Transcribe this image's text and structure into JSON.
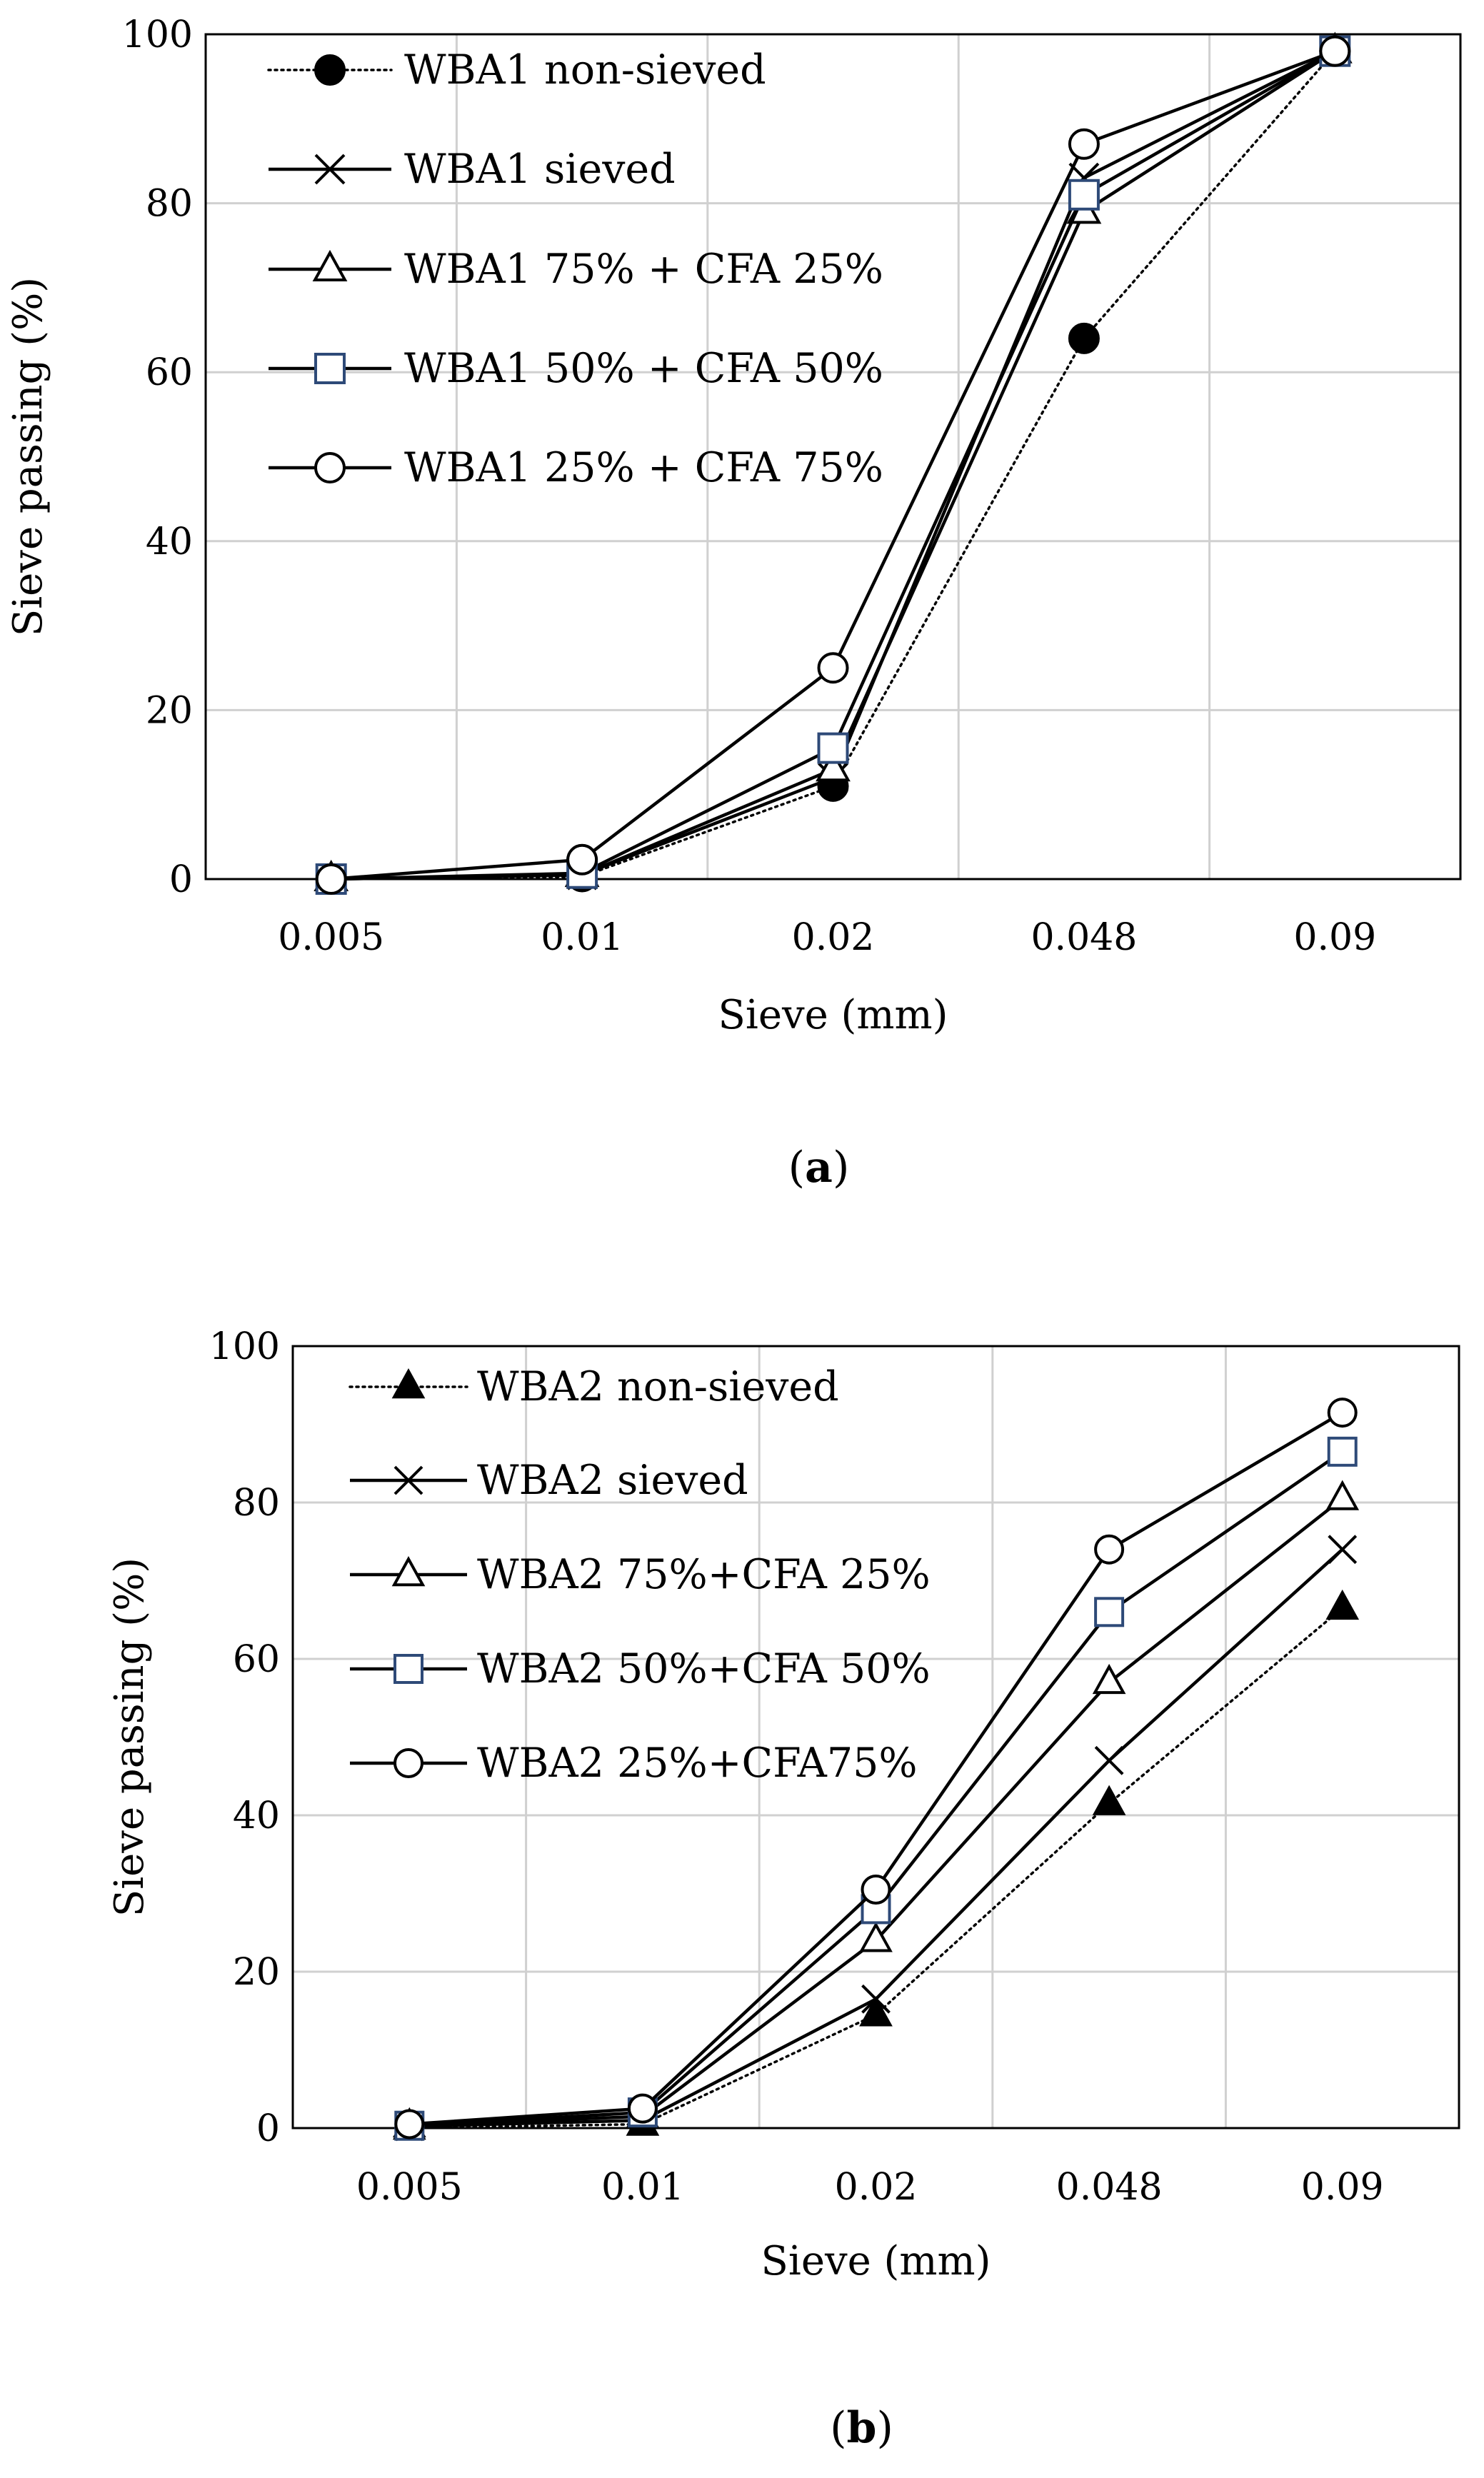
{
  "chart_data": [
    {
      "type": "line",
      "panel_label": "a",
      "title": "",
      "xlabel": "Sieve (mm)",
      "ylabel": "Sieve passing (%)",
      "categories": [
        "0.005",
        "0.01",
        "0.02",
        "0.048",
        "0.09"
      ],
      "ylim": [
        0,
        100
      ],
      "yticks": [
        "0",
        "20",
        "40",
        "60",
        "80",
        "100"
      ],
      "grid": true,
      "legend_position": "top-left",
      "series": [
        {
          "name": "WBA1 non-sieved",
          "marker": "filled-circle",
          "line": "dotted",
          "values": [
            0,
            0.3,
            11,
            64,
            98
          ]
        },
        {
          "name": "WBA1 sieved",
          "marker": "x",
          "line": "solid",
          "values": [
            0,
            0.5,
            12,
            83,
            98
          ]
        },
        {
          "name": "WBA1 75% + CFA 25%",
          "marker": "open-triangle",
          "line": "solid",
          "values": [
            0,
            0.5,
            13,
            79,
            98
          ]
        },
        {
          "name": "WBA1 50% + CFA 50%",
          "marker": "open-square",
          "line": "solid",
          "values": [
            0,
            0.7,
            15.5,
            81,
            98
          ]
        },
        {
          "name": "WBA1 25% + CFA 75%",
          "marker": "open-circle",
          "line": "solid",
          "values": [
            0,
            2.3,
            25,
            87,
            98
          ]
        }
      ]
    },
    {
      "type": "line",
      "panel_label": "b",
      "title": "",
      "xlabel": "Sieve (mm)",
      "ylabel": "Sieve passing (%)",
      "categories": [
        "0.005",
        "0.01",
        "0.02",
        "0.048",
        "0.09"
      ],
      "ylim": [
        0,
        100
      ],
      "yticks": [
        "0",
        "20",
        "40",
        "60",
        "80",
        "100"
      ],
      "grid": true,
      "legend_position": "top-left",
      "series": [
        {
          "name": "WBA2 non-sieved",
          "marker": "filled-triangle",
          "line": "dotted",
          "values": [
            0,
            0.5,
            14.5,
            41.5,
            66.5
          ]
        },
        {
          "name": "WBA2 sieved",
          "marker": "x",
          "line": "solid",
          "values": [
            0.2,
            1,
            16.5,
            47,
            74
          ]
        },
        {
          "name": "WBA2 75%+CFA 25%",
          "marker": "open-triangle",
          "line": "solid",
          "values": [
            0.3,
            1.5,
            24,
            57,
            80.5
          ]
        },
        {
          "name": "WBA2 50%+CFA 50%",
          "marker": "open-square",
          "line": "solid",
          "values": [
            0.3,
            2,
            28,
            66,
            86.5
          ]
        },
        {
          "name": "WBA2 25%+CFA75%",
          "marker": "open-circle",
          "line": "solid",
          "values": [
            0.5,
            2.5,
            30.5,
            74,
            91.5
          ]
        }
      ]
    }
  ]
}
